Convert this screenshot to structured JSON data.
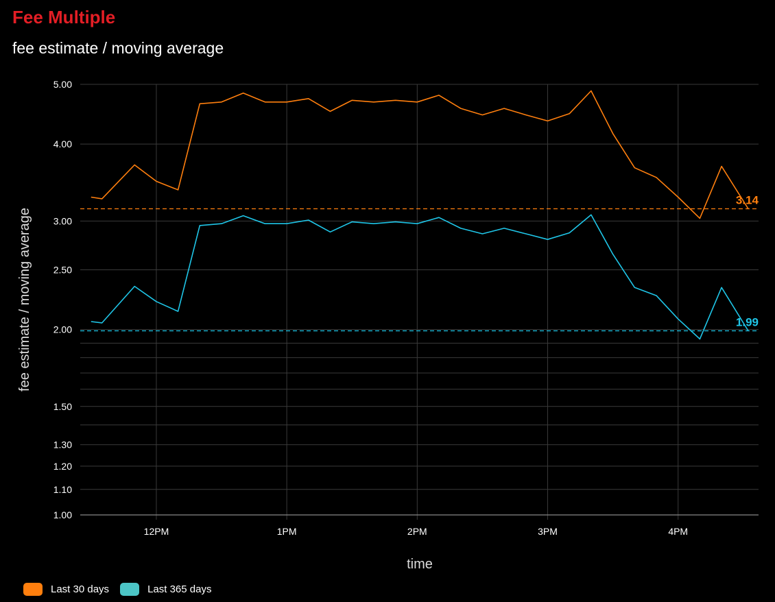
{
  "header": {
    "title": "Fee Multiple",
    "subtitle": "fee estimate / moving average"
  },
  "colors": {
    "title": "#e31e25",
    "series_30": "#ff7f0e",
    "series_365": "#1fc6e8",
    "legend_30": "#ff7f0e",
    "legend_365": "#4cc5c6",
    "grid": "#3a3a3a",
    "axis": "#888888"
  },
  "chart_data": {
    "type": "line",
    "xlabel": "time",
    "ylabel": "fee estimate / moving average",
    "y_scale": "log",
    "ylim": [
      1.0,
      5.0
    ],
    "xlim": [
      "11:25",
      "12:37+4h"
    ],
    "y_ticks": [
      {
        "value": 1.0,
        "label": "1.00"
      },
      {
        "value": 1.1,
        "label": "1.10"
      },
      {
        "value": 1.2,
        "label": "1.20"
      },
      {
        "value": 1.3,
        "label": "1.30"
      },
      {
        "value": 1.5,
        "label": "1.50"
      },
      {
        "value": 2.0,
        "label": "2.00"
      },
      {
        "value": 2.5,
        "label": "2.50"
      },
      {
        "value": 3.0,
        "label": "3.00"
      },
      {
        "value": 4.0,
        "label": "4.00"
      },
      {
        "value": 5.0,
        "label": "5.00"
      }
    ],
    "minor_y_ticks": [
      1.4,
      1.6,
      1.7,
      1.8,
      1.9
    ],
    "x_ticks": [
      {
        "value": "12:00",
        "label": "12PM"
      },
      {
        "value": "13:00",
        "label": "1PM"
      },
      {
        "value": "14:00",
        "label": "2PM"
      },
      {
        "value": "15:00",
        "label": "3PM"
      },
      {
        "value": "16:00",
        "label": "4PM"
      }
    ],
    "x": [
      "11:30",
      "11:35",
      "11:50",
      "12:00",
      "12:10",
      "12:20",
      "12:30",
      "12:40",
      "12:50",
      "13:00",
      "13:10",
      "13:20",
      "13:30",
      "13:40",
      "13:50",
      "14:00",
      "14:10",
      "14:20",
      "14:30",
      "14:40",
      "14:50",
      "15:00",
      "15:10",
      "15:20",
      "15:30",
      "15:40",
      "15:50",
      "16:00",
      "16:10",
      "16:20"
    ],
    "series": [
      {
        "name": "Last 30 days",
        "color": "#ff7f0e",
        "values": [
          3.28,
          3.26,
          3.7,
          3.48,
          3.37,
          4.65,
          4.68,
          4.84,
          4.68,
          4.68,
          4.74,
          4.52,
          4.71,
          4.68,
          4.71,
          4.68,
          4.8,
          4.57,
          4.46,
          4.57,
          4.46,
          4.36,
          4.48,
          4.88,
          4.16,
          3.66,
          3.53,
          3.28,
          3.03,
          3.68
        ],
        "last_value": "3.14"
      },
      {
        "name": "Last 365 days",
        "color": "#1fc6e8",
        "values": [
          2.06,
          2.05,
          2.35,
          2.22,
          2.14,
          2.95,
          2.97,
          3.06,
          2.97,
          2.97,
          3.01,
          2.88,
          2.99,
          2.97,
          2.99,
          2.97,
          3.04,
          2.92,
          2.86,
          2.92,
          2.86,
          2.8,
          2.87,
          3.07,
          2.65,
          2.34,
          2.27,
          2.08,
          1.93,
          2.34
        ],
        "last_value": "1.99"
      }
    ],
    "reference_lines": [
      {
        "series": "Last 30 days",
        "value": 3.14
      },
      {
        "series": "Last 365 days",
        "value": 1.99
      }
    ],
    "grid": true,
    "legend": "bottom-left"
  },
  "legend": {
    "items": [
      {
        "label": "Last 30 days"
      },
      {
        "label": "Last 365 days"
      }
    ]
  }
}
